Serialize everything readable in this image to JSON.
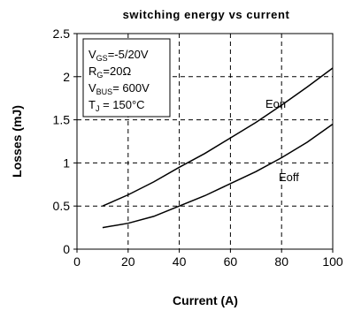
{
  "chart_data": {
    "type": "line",
    "title": "switching energy vs current",
    "xlabel": "Current (A)",
    "ylabel": "Losses (mJ)",
    "xlim": [
      0,
      100
    ],
    "ylim": [
      0,
      2.5
    ],
    "xticks": [
      "0",
      "20",
      "40",
      "60",
      "80",
      "100"
    ],
    "yticks": [
      "0",
      "0.5",
      "1",
      "1.5",
      "2",
      "2.5"
    ],
    "grid": true,
    "series": [
      {
        "name": "Eon",
        "x": [
          10,
          20,
          30,
          40,
          50,
          60,
          70,
          80,
          90,
          100
        ],
        "y": [
          0.5,
          0.63,
          0.78,
          0.95,
          1.11,
          1.29,
          1.47,
          1.67,
          1.88,
          2.1
        ]
      },
      {
        "name": "Eoff",
        "x": [
          10,
          20,
          30,
          40,
          50,
          60,
          70,
          80,
          90,
          100
        ],
        "y": [
          0.25,
          0.3,
          0.38,
          0.5,
          0.62,
          0.76,
          0.9,
          1.06,
          1.24,
          1.45
        ]
      }
    ],
    "conditions": [
      {
        "base": "V",
        "sub": "GS",
        "value": "=-5/20V"
      },
      {
        "base": "R",
        "sub": "G",
        "value": "=20Ω"
      },
      {
        "base": "V",
        "sub": "BUS",
        "value": "= 600V"
      },
      {
        "base": "T",
        "sub": "J",
        "value": " = 150°C"
      }
    ]
  }
}
